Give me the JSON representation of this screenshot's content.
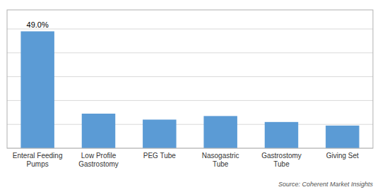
{
  "chart_data": {
    "type": "bar",
    "categories": [
      "Enteral Feeding\nPumps",
      "Low Profile\nGastrostomy",
      "PEG Tube",
      "Nasogastric\nTube",
      "Gastrostomy\nTube",
      "Giving Set"
    ],
    "values": [
      49.0,
      14.5,
      12.0,
      13.5,
      11.0,
      9.5
    ],
    "value_labels": [
      "49.0%",
      null,
      null,
      null,
      null,
      null
    ],
    "color": "#5b9bd5",
    "ylim": [
      0,
      58
    ],
    "yticks": [
      0,
      10,
      20,
      30,
      40,
      50
    ],
    "grid": true,
    "tick_labels": "x",
    "annotations": [
      "Source: Coherent Market Insights"
    ]
  }
}
